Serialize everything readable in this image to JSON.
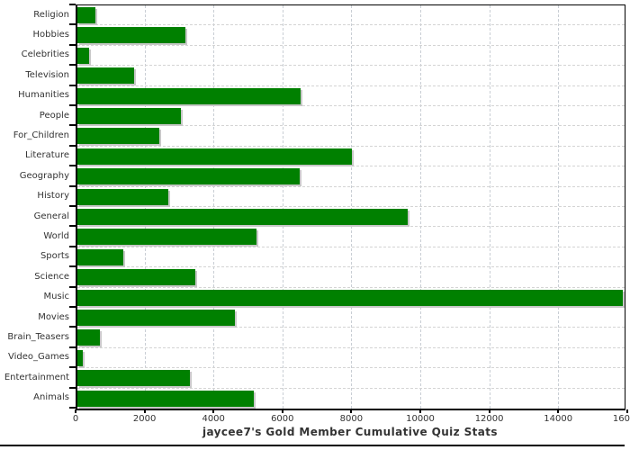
{
  "chart_data": {
    "type": "bar",
    "orientation": "horizontal",
    "title": "jaycee7's Gold Member Cumulative Quiz Stats",
    "categories": [
      "Religion",
      "Hobbies",
      "Celebrities",
      "Television",
      "Humanities",
      "People",
      "For_Children",
      "Literature",
      "Geography",
      "History",
      "General",
      "World",
      "Sports",
      "Science",
      "Music",
      "Movies",
      "Brain_Teasers",
      "Video_Games",
      "Entertainment",
      "Animals"
    ],
    "values": [
      530,
      3140,
      350,
      1650,
      6480,
      3000,
      2380,
      7960,
      6450,
      2650,
      9580,
      5200,
      1320,
      3430,
      15870,
      4560,
      640,
      160,
      3260,
      5130
    ],
    "xlabel": "",
    "ylabel": "",
    "xlim": [
      0,
      16000
    ],
    "x_ticks": [
      0,
      2000,
      4000,
      6000,
      8000,
      10000,
      12000,
      14000,
      16000
    ],
    "x_tick_labels": [
      "0",
      "2000",
      "4000",
      "6000",
      "8000",
      "10000",
      "12000",
      "14000",
      "16000"
    ],
    "grid": "dashed vertical and horizontal",
    "legend": "none",
    "bar_color": "#008000",
    "bar_shadow_color": "#c8c8c8",
    "grid_color": "#d4d4d4",
    "axis_color": "#000000",
    "text_color": "#333333"
  }
}
